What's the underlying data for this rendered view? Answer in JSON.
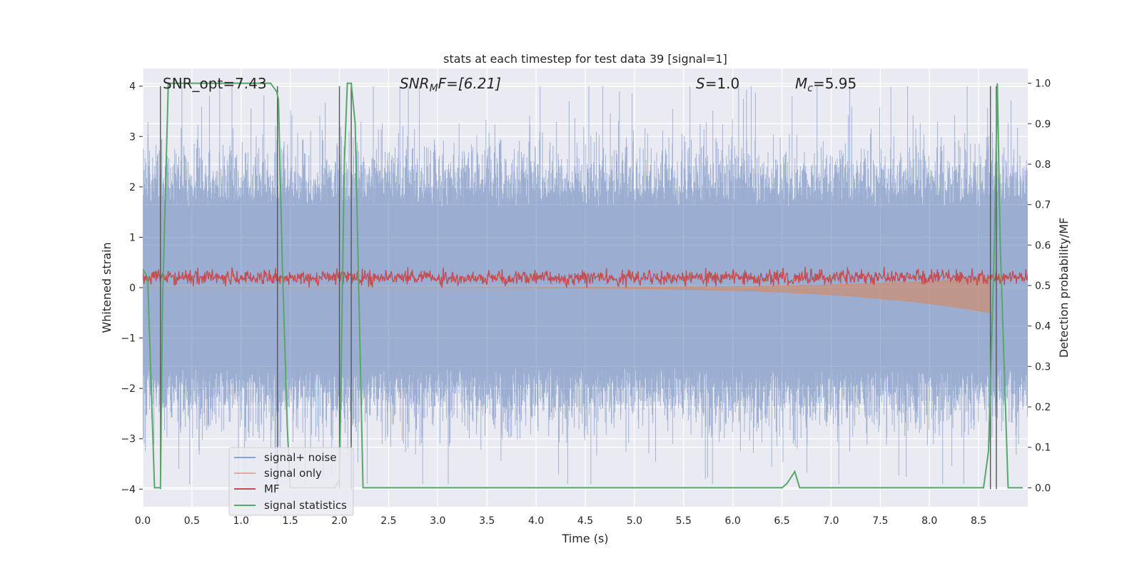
{
  "chart_data": {
    "type": "line",
    "title": "stats at each timestep for test data 39 [signal=1]",
    "xlabel": "Time (s)",
    "ylabel": "Whitened strain",
    "y2label": "Detection probability/MF",
    "xlim": [
      0,
      9
    ],
    "ylim": [
      -4.35,
      4.35
    ],
    "y2lim": [
      -0.0469,
      1.0364
    ],
    "grid": true,
    "legend": "lower-left",
    "x_ticks": [
      0.0,
      0.5,
      1.0,
      1.5,
      2.0,
      2.5,
      3.0,
      3.5,
      4.0,
      4.5,
      5.0,
      5.5,
      6.0,
      6.5,
      7.0,
      7.5,
      8.0,
      8.5
    ],
    "x_tick_labels": [
      "0.0",
      "0.5",
      "1.0",
      "1.5",
      "2.0",
      "2.5",
      "3.0",
      "3.5",
      "4.0",
      "4.5",
      "5.0",
      "5.5",
      "6.0",
      "6.5",
      "7.0",
      "7.5",
      "8.0",
      "8.5"
    ],
    "y_ticks": [
      4,
      3,
      2,
      1,
      0,
      -1,
      -2,
      -3,
      -4
    ],
    "y_tick_labels": [
      "4",
      "3",
      "2",
      "1",
      "0",
      "−1",
      "−2",
      "−3",
      "−4"
    ],
    "y2_ticks": [
      1.0,
      0.9,
      0.8,
      0.7,
      0.6,
      0.5,
      0.4,
      0.3,
      0.2,
      0.1,
      0.0
    ],
    "y2_tick_labels": [
      "1.0",
      "0.9",
      "0.8",
      "0.7",
      "0.6",
      "0.5",
      "0.4",
      "0.3",
      "0.2",
      "0.1",
      "0.0"
    ],
    "annotations": {
      "snr_opt": "SNR_opt=7.43",
      "snr_mf_base": "SNR",
      "snr_mf_sub": "M",
      "snr_mf_rest": "F=[6.21]",
      "s_sym": "S",
      "s_val": "=1.0",
      "mc_sym": "M",
      "mc_sub": "c",
      "mc_val": "=5.95"
    },
    "vlines": [
      0.18,
      1.37,
      2.0,
      2.12,
      8.62,
      8.68
    ],
    "series": [
      {
        "name": "signal+ noise",
        "color": "#4c72b0",
        "axis": "left",
        "envelope": {
          "upper": 1.6,
          "lower": -1.6,
          "peak_upper": 4.0,
          "peak_lower": -3.9
        }
      },
      {
        "name": "signal only",
        "color": "#dd8452",
        "axis": "left",
        "chirp": {
          "end_time": 8.62,
          "end_amplitude": -0.5
        }
      },
      {
        "name": "MF",
        "color": "#c44e52",
        "axis": "left",
        "band": {
          "mean": 0.2,
          "max": 0.6,
          "min": 0.0
        }
      },
      {
        "name": "signal statistics",
        "color": "#55a868",
        "axis": "right",
        "x": [
          0.0,
          0.05,
          0.12,
          0.18,
          0.2,
          0.26,
          1.0,
          1.3,
          1.36,
          1.38,
          1.42,
          1.47,
          1.5,
          1.95,
          2.0,
          2.05,
          2.08,
          2.12,
          2.16,
          2.24,
          6.5,
          6.55,
          6.63,
          6.68,
          8.55,
          8.6,
          8.66,
          8.69,
          8.72,
          8.8,
          8.95
        ],
        "y": [
          0.54,
          0.52,
          0.0,
          0.0,
          0.45,
          1.0,
          1.0,
          1.0,
          0.98,
          0.96,
          0.55,
          0.15,
          0.0,
          0.0,
          0.02,
          0.8,
          1.0,
          1.0,
          0.9,
          0.0,
          0.0,
          0.01,
          0.04,
          0.0,
          0.0,
          0.09,
          0.6,
          1.0,
          0.6,
          0.0,
          0.0
        ]
      }
    ]
  }
}
